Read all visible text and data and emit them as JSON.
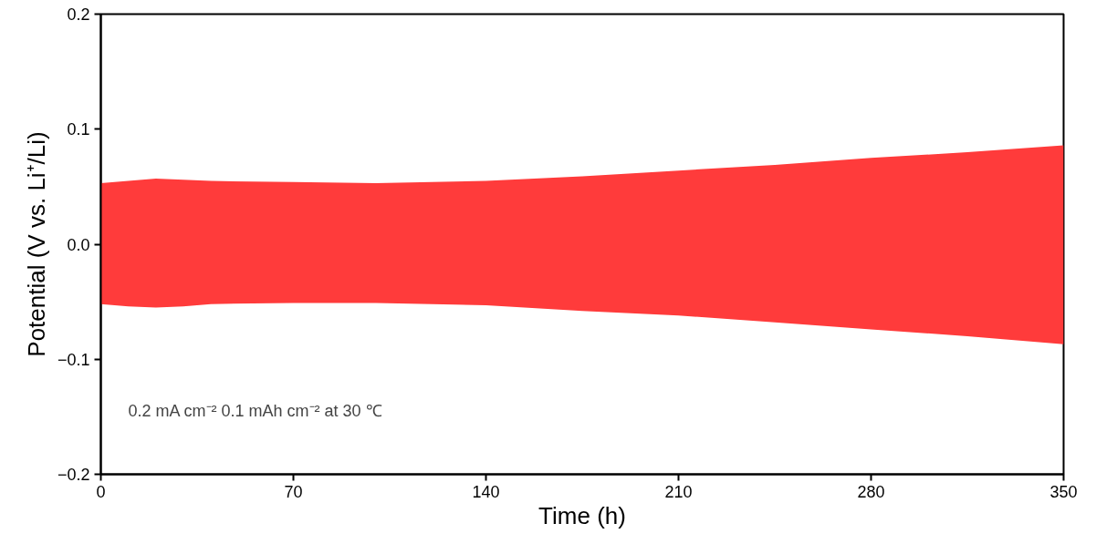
{
  "chart_data": {
    "type": "area",
    "xlabel": "Time (h)",
    "ylabel": "Potential (V vs. Li⁺/Li)",
    "x": [
      0,
      10,
      20,
      30,
      40,
      70,
      100,
      140,
      175,
      210,
      245,
      280,
      315,
      350
    ],
    "series": [
      {
        "color": "#ff3b3b",
        "values": [
          0.053,
          0.055,
          0.057,
          0.056,
          0.055,
          0.054,
          0.053,
          0.055,
          0.059,
          0.064,
          0.069,
          0.075,
          0.08,
          0.086
        ]
      },
      {
        "color": "#ff3b3b",
        "values": [
          -0.052,
          -0.054,
          -0.055,
          -0.054,
          -0.052,
          -0.051,
          -0.051,
          -0.053,
          -0.058,
          -0.062,
          -0.068,
          -0.074,
          -0.08,
          -0.087
        ]
      }
    ],
    "xlim": [
      0,
      350
    ],
    "xticks": [
      0,
      70,
      140,
      210,
      280,
      350
    ],
    "ylim": [
      -0.2,
      0.2
    ],
    "yticks": [
      {
        "value": -0.2,
        "label": "−0.2"
      },
      {
        "value": -0.1,
        "label": "−0.1"
      },
      {
        "value": 0,
        "label": "0.0"
      },
      {
        "value": 0.1,
        "label": "0.1"
      },
      {
        "value": 0.2,
        "label": "0.2"
      }
    ],
    "annotations": [
      "0.2 mA cm⁻² 0.1 mAh cm⁻² at 30 ℃"
    ],
    "grid": false
  }
}
